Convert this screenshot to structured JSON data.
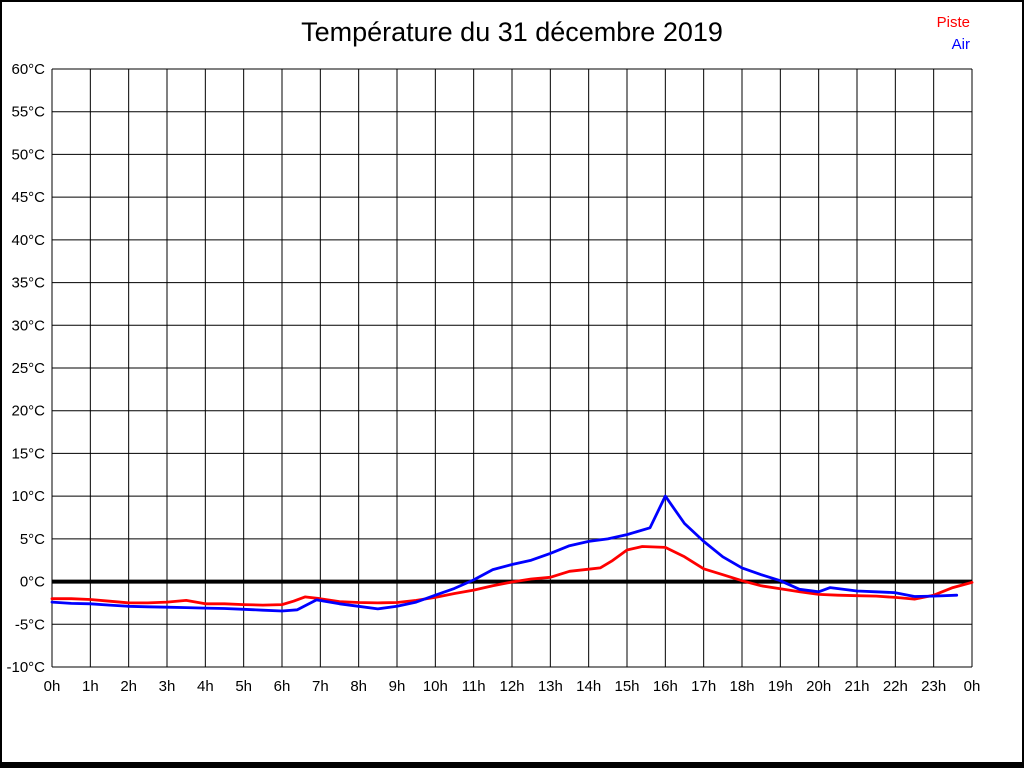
{
  "header": {
    "title": "Température du 31 décembre 2019"
  },
  "legend": {
    "piste": {
      "label": "Piste",
      "color": "#ff0000"
    },
    "air": {
      "label": "Air",
      "color": "#0000ff"
    }
  },
  "chart_data": {
    "type": "line",
    "title": "Température du 31 décembre 2019",
    "xlabel": "",
    "ylabel": "",
    "xlim": [
      0,
      24
    ],
    "ylim": [
      -10,
      60
    ],
    "y_step": 5,
    "grid": true,
    "grid_color": "#000000",
    "text_color": "#000000",
    "zero_line": {
      "value": 0,
      "color": "#000000",
      "width": 4
    },
    "legend_position": "top-right",
    "x_tick_labels": [
      "0h",
      "1h",
      "2h",
      "3h",
      "4h",
      "5h",
      "6h",
      "7h",
      "8h",
      "9h",
      "10h",
      "11h",
      "12h",
      "13h",
      "14h",
      "15h",
      "16h",
      "17h",
      "18h",
      "19h",
      "20h",
      "21h",
      "22h",
      "23h",
      "0h"
    ],
    "y_tick_labels": [
      "-10°C",
      "-5°C",
      "0°C",
      "5°C",
      "10°C",
      "15°C",
      "20°C",
      "25°C",
      "30°C",
      "35°C",
      "40°C",
      "45°C",
      "50°C",
      "55°C",
      "60°C"
    ],
    "series": [
      {
        "name": "Piste",
        "color": "#ff0000",
        "points": [
          [
            0,
            -2.0
          ],
          [
            0.5,
            -2.0
          ],
          [
            1,
            -2.1
          ],
          [
            1.5,
            -2.3
          ],
          [
            2,
            -2.5
          ],
          [
            2.5,
            -2.5
          ],
          [
            3,
            -2.4
          ],
          [
            3.5,
            -2.2
          ],
          [
            4,
            -2.6
          ],
          [
            4.5,
            -2.6
          ],
          [
            5,
            -2.7
          ],
          [
            5.5,
            -2.75
          ],
          [
            6,
            -2.7
          ],
          [
            6.3,
            -2.3
          ],
          [
            6.6,
            -1.8
          ],
          [
            7,
            -2.0
          ],
          [
            7.5,
            -2.35
          ],
          [
            8,
            -2.45
          ],
          [
            8.5,
            -2.5
          ],
          [
            9,
            -2.45
          ],
          [
            9.5,
            -2.2
          ],
          [
            10,
            -1.85
          ],
          [
            10.5,
            -1.4
          ],
          [
            11,
            -1.0
          ],
          [
            11.5,
            -0.5
          ],
          [
            12,
            -0.05
          ],
          [
            12.5,
            0.3
          ],
          [
            13,
            0.5
          ],
          [
            13.5,
            1.2
          ],
          [
            14,
            1.45
          ],
          [
            14.3,
            1.6
          ],
          [
            14.6,
            2.4
          ],
          [
            15,
            3.7
          ],
          [
            15.4,
            4.1
          ],
          [
            16,
            4.0
          ],
          [
            16.5,
            2.9
          ],
          [
            17,
            1.5
          ],
          [
            17.5,
            0.8
          ],
          [
            18,
            0.1
          ],
          [
            18.5,
            -0.5
          ],
          [
            19,
            -0.85
          ],
          [
            19.5,
            -1.2
          ],
          [
            20,
            -1.5
          ],
          [
            20.5,
            -1.6
          ],
          [
            21,
            -1.65
          ],
          [
            21.5,
            -1.7
          ],
          [
            22,
            -1.85
          ],
          [
            22.5,
            -2.05
          ],
          [
            23,
            -1.6
          ],
          [
            23.5,
            -0.7
          ],
          [
            24,
            -0.1
          ]
        ]
      },
      {
        "name": "Air",
        "color": "#0000ff",
        "points": [
          [
            0,
            -2.4
          ],
          [
            0.5,
            -2.55
          ],
          [
            1,
            -2.6
          ],
          [
            1.5,
            -2.75
          ],
          [
            2,
            -2.9
          ],
          [
            2.5,
            -2.95
          ],
          [
            3,
            -3.0
          ],
          [
            3.5,
            -3.05
          ],
          [
            4,
            -3.1
          ],
          [
            4.5,
            -3.15
          ],
          [
            5,
            -3.25
          ],
          [
            5.5,
            -3.35
          ],
          [
            6,
            -3.45
          ],
          [
            6.4,
            -3.3
          ],
          [
            6.9,
            -2.15
          ],
          [
            7.5,
            -2.6
          ],
          [
            8,
            -2.9
          ],
          [
            8.5,
            -3.2
          ],
          [
            9,
            -2.9
          ],
          [
            9.5,
            -2.4
          ],
          [
            10,
            -1.6
          ],
          [
            10.5,
            -0.8
          ],
          [
            11,
            0.2
          ],
          [
            11.5,
            1.4
          ],
          [
            12,
            2.0
          ],
          [
            12.5,
            2.5
          ],
          [
            13,
            3.3
          ],
          [
            13.5,
            4.2
          ],
          [
            14,
            4.7
          ],
          [
            14.5,
            5.0
          ],
          [
            15,
            5.5
          ],
          [
            15.6,
            6.3
          ],
          [
            16,
            10.0
          ],
          [
            16.5,
            6.8
          ],
          [
            17,
            4.7
          ],
          [
            17.5,
            2.9
          ],
          [
            18,
            1.6
          ],
          [
            18.5,
            0.8
          ],
          [
            19,
            0.1
          ],
          [
            19.5,
            -0.9
          ],
          [
            20,
            -1.2
          ],
          [
            20.3,
            -0.7
          ],
          [
            21,
            -1.1
          ],
          [
            21.5,
            -1.2
          ],
          [
            22,
            -1.3
          ],
          [
            22.5,
            -1.75
          ],
          [
            23,
            -1.7
          ],
          [
            23.6,
            -1.6
          ]
        ]
      }
    ]
  }
}
